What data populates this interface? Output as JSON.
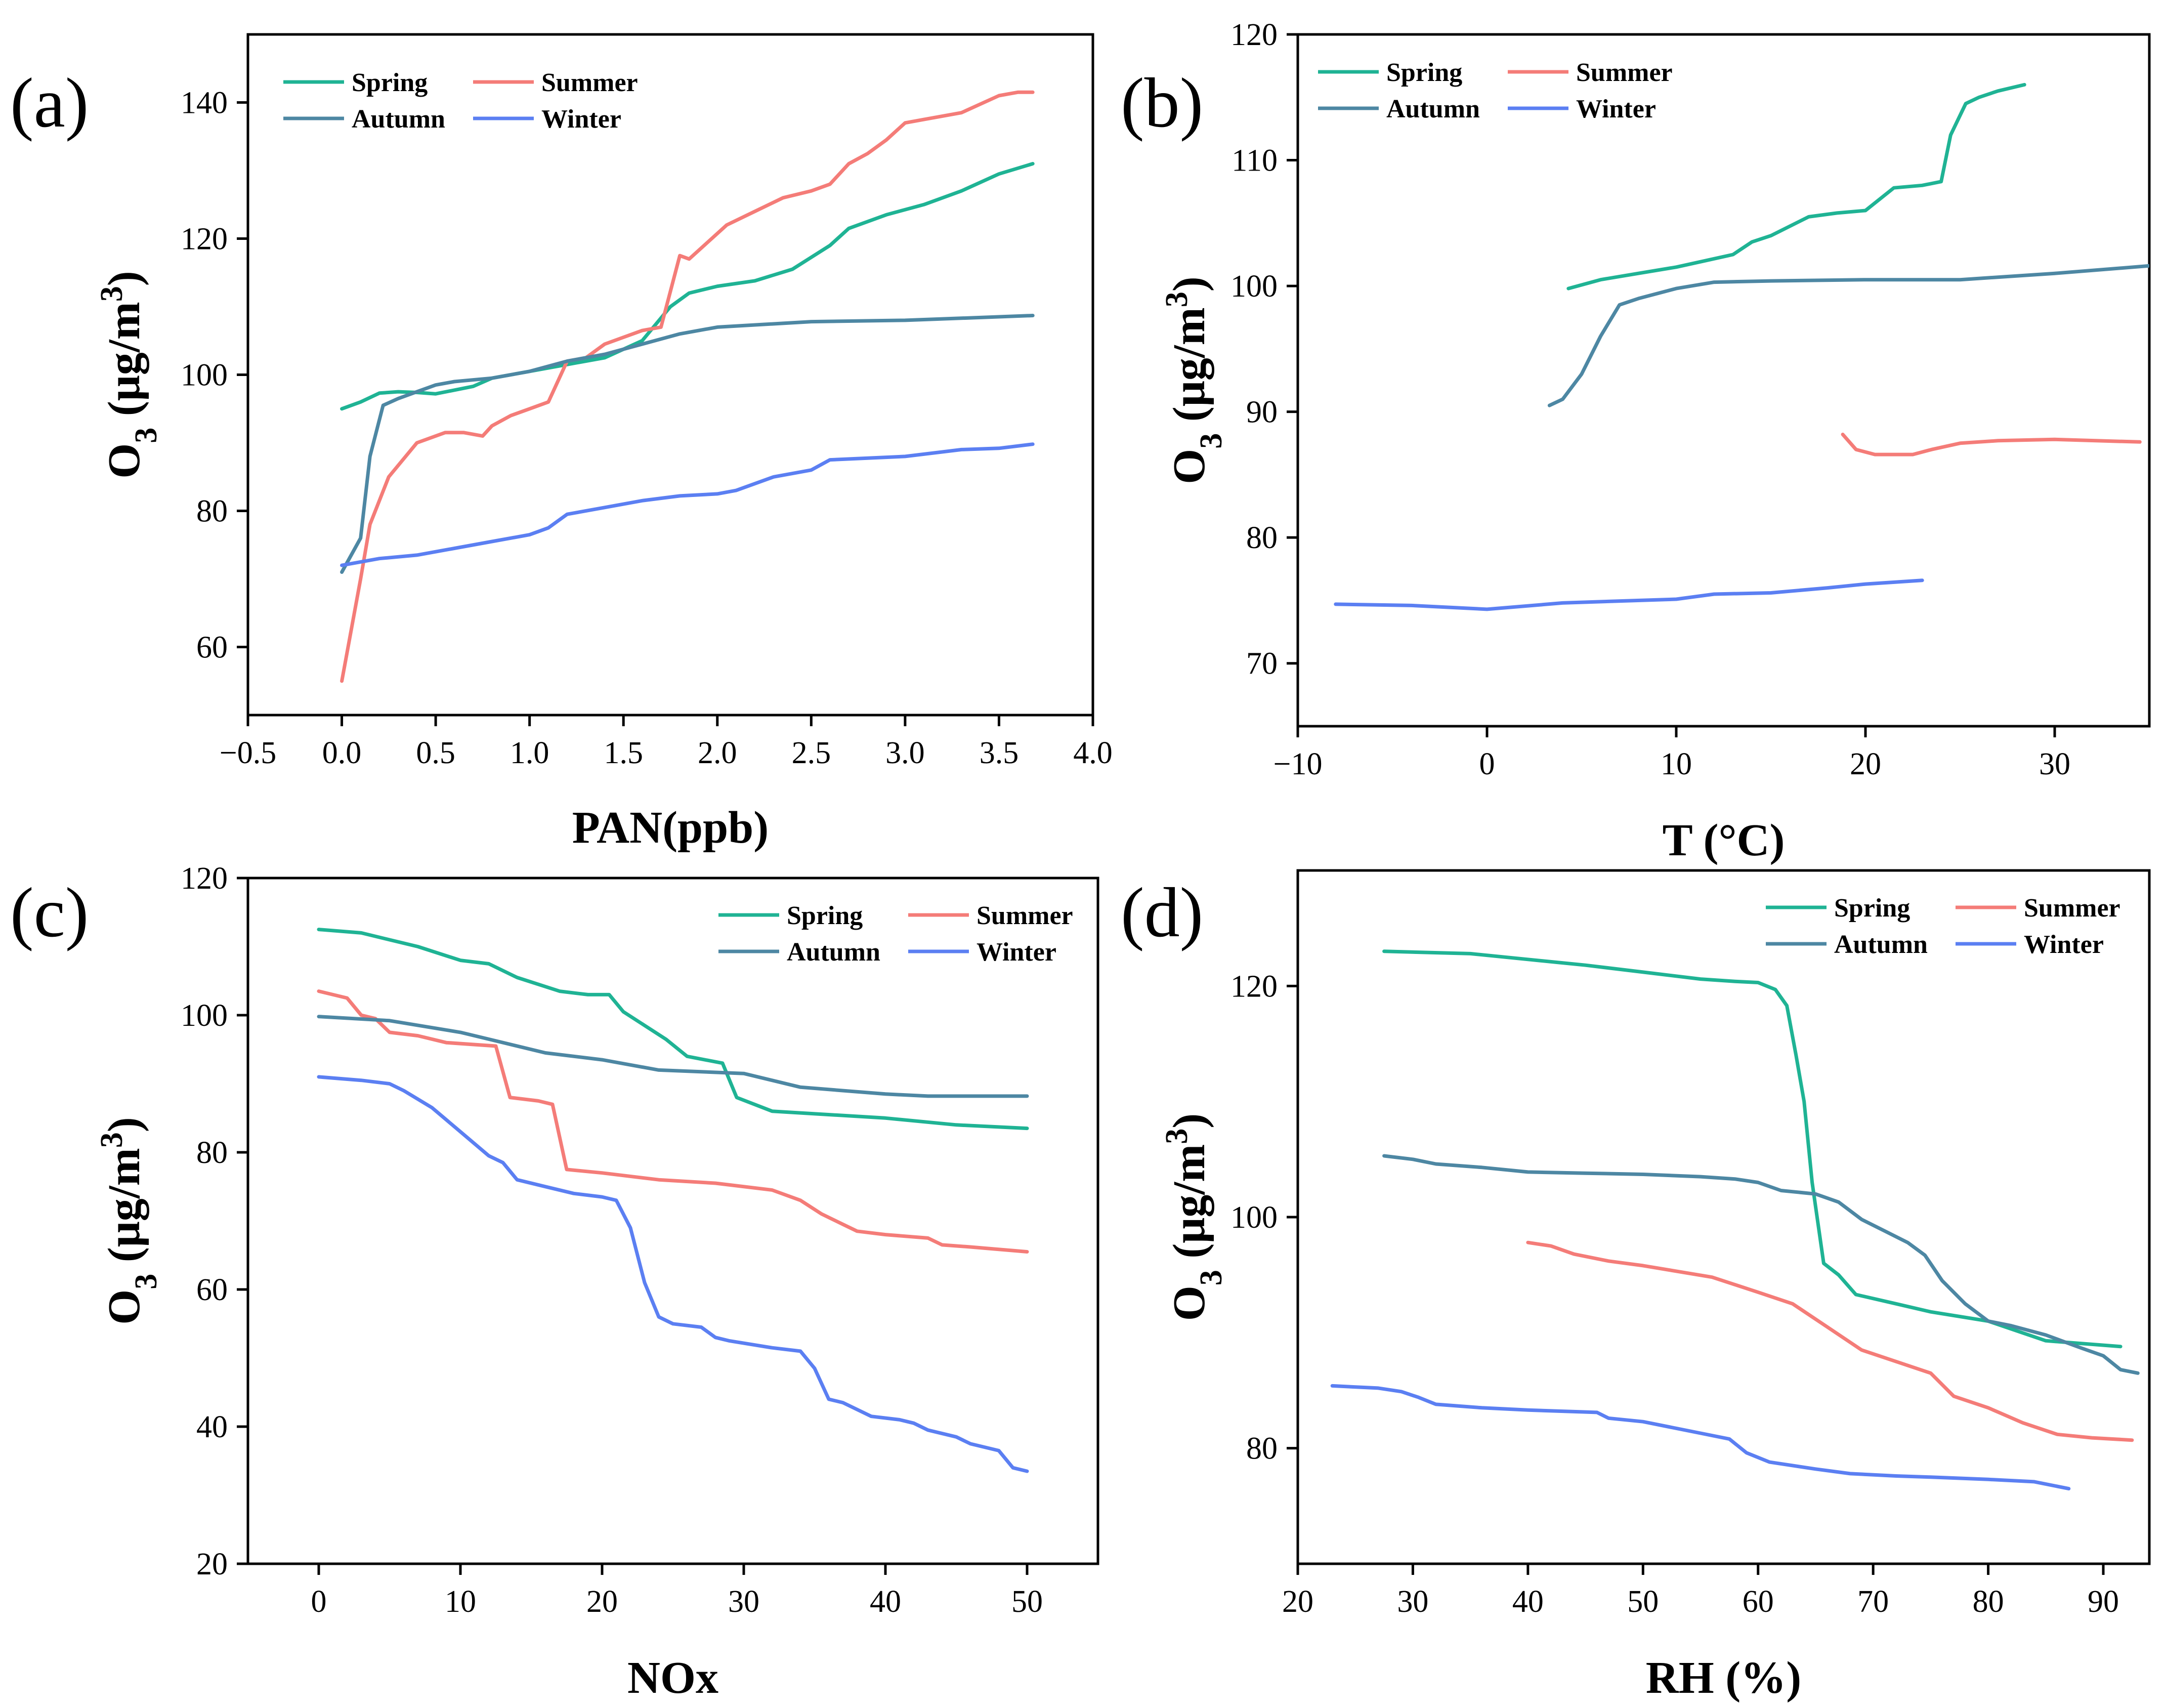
{
  "colors": {
    "Spring": "#1fb394",
    "Summer": "#f47c78",
    "Autumn": "#4d87a3",
    "Winter": "#5b7ff2"
  },
  "chart_data": [
    {
      "type": "line",
      "panel_label": "(a)",
      "xlabel": "PAN(ppb)",
      "ylabel_main": "O",
      "ylabel_sub": "3",
      "ylabel_unit": " (μg/m",
      "ylabel_sup": "3",
      "ylabel_close": ")",
      "xlim": [
        -0.5,
        4.0
      ],
      "ylim": [
        50,
        150
      ],
      "xticks": [
        -0.5,
        0.0,
        0.5,
        1.0,
        1.5,
        2.0,
        2.5,
        3.0,
        3.5,
        4.0
      ],
      "xtick_labels": [
        "−0.5",
        "0.0",
        "0.5",
        "1.0",
        "1.5",
        "2.0",
        "2.5",
        "3.0",
        "3.5",
        "4.0"
      ],
      "yticks": [
        60,
        80,
        100,
        120,
        140
      ],
      "ytick_labels": [
        "60",
        "80",
        "100",
        "120",
        "140"
      ],
      "legend": "top-left",
      "series": [
        {
          "name": "Spring",
          "x": [
            0.0,
            0.1,
            0.2,
            0.3,
            0.4,
            0.5,
            0.7,
            0.8,
            1.0,
            1.2,
            1.4,
            1.6,
            1.75,
            1.85,
            2.0,
            2.2,
            2.4,
            2.6,
            2.7,
            2.9,
            3.1,
            3.3,
            3.5,
            3.68
          ],
          "y": [
            95,
            96,
            97.3,
            97.5,
            97.4,
            97.2,
            98.3,
            99.5,
            100.5,
            101.5,
            102.5,
            105,
            110,
            112,
            113,
            113.8,
            115.5,
            119,
            121.5,
            123.5,
            125,
            127,
            129.5,
            131
          ]
        },
        {
          "name": "Summer",
          "x": [
            0.0,
            0.1,
            0.15,
            0.25,
            0.4,
            0.55,
            0.65,
            0.75,
            0.8,
            0.9,
            1.0,
            1.1,
            1.2,
            1.3,
            1.4,
            1.5,
            1.6,
            1.7,
            1.8,
            1.85,
            1.95,
            2.05,
            2.2,
            2.35,
            2.5,
            2.6,
            2.7,
            2.8,
            2.9,
            3.0,
            3.1,
            3.3,
            3.5,
            3.6,
            3.68
          ],
          "y": [
            55,
            70,
            78,
            85,
            90,
            91.5,
            91.5,
            91,
            92.5,
            94,
            95,
            96,
            102,
            102.5,
            104.5,
            105.5,
            106.5,
            107,
            117.5,
            117,
            119.5,
            122,
            124,
            126,
            127,
            128,
            131,
            132.5,
            134.5,
            137,
            137.5,
            138.5,
            141,
            141.5,
            141.5
          ]
        },
        {
          "name": "Autumn",
          "x": [
            0.0,
            0.1,
            0.15,
            0.22,
            0.3,
            0.4,
            0.5,
            0.6,
            0.8,
            1.0,
            1.2,
            1.4,
            1.6,
            1.8,
            2.0,
            2.5,
            3.0,
            3.68
          ],
          "y": [
            71,
            76,
            88,
            95.5,
            96.5,
            97.5,
            98.5,
            99,
            99.5,
            100.5,
            102,
            103,
            104.5,
            106,
            107,
            107.8,
            108,
            108.7
          ]
        },
        {
          "name": "Winter",
          "x": [
            0.0,
            0.2,
            0.4,
            0.6,
            0.8,
            1.0,
            1.1,
            1.2,
            1.4,
            1.6,
            1.8,
            2.0,
            2.1,
            2.3,
            2.5,
            2.6,
            3.0,
            3.3,
            3.5,
            3.68
          ],
          "y": [
            72,
            73,
            73.5,
            74.5,
            75.5,
            76.5,
            77.5,
            79.5,
            80.5,
            81.5,
            82.2,
            82.5,
            83,
            85,
            86,
            87.5,
            88,
            89,
            89.2,
            89.8
          ]
        }
      ]
    },
    {
      "type": "line",
      "panel_label": "(b)",
      "xlabel": "T (°C)",
      "ylabel_main": "O",
      "ylabel_sub": "3",
      "ylabel_unit": " (μg/m",
      "ylabel_sup": "3",
      "ylabel_close": ")",
      "xlim": [
        -10,
        35
      ],
      "ylim": [
        65,
        120
      ],
      "xticks": [
        -10,
        0,
        10,
        20,
        30
      ],
      "xtick_labels": [
        "−10",
        "0",
        "10",
        "20",
        "30"
      ],
      "yticks": [
        70,
        80,
        90,
        100,
        110,
        120
      ],
      "ytick_labels": [
        "70",
        "80",
        "90",
        "100",
        "110",
        "120"
      ],
      "legend": "top-left",
      "series": [
        {
          "name": "Spring",
          "x": [
            4.3,
            6,
            8,
            10,
            11.5,
            13,
            14,
            15,
            17,
            18.5,
            20,
            21.5,
            23,
            24,
            24.5,
            25.3,
            26,
            27,
            28.4
          ],
          "y": [
            99.8,
            100.5,
            101,
            101.5,
            102,
            102.5,
            103.5,
            104,
            105.5,
            105.8,
            106,
            107.8,
            108,
            108.3,
            112,
            114.5,
            115,
            115.5,
            116
          ]
        },
        {
          "name": "Summer",
          "x": [
            18.8,
            19.5,
            20.5,
            22.5,
            23.5,
            25,
            27,
            30,
            34.5
          ],
          "y": [
            88.2,
            87,
            86.6,
            86.6,
            87,
            87.5,
            87.7,
            87.8,
            87.6
          ]
        },
        {
          "name": "Autumn",
          "x": [
            3.3,
            4,
            5,
            6,
            7,
            8,
            10,
            12,
            15,
            20,
            25,
            30,
            35
          ],
          "y": [
            90.5,
            91,
            93,
            96,
            98.5,
            99,
            99.8,
            100.3,
            100.4,
            100.5,
            100.5,
            101,
            101.6
          ]
        },
        {
          "name": "Winter",
          "x": [
            -8,
            -4,
            0,
            4,
            10,
            12,
            15,
            18,
            20,
            23
          ],
          "y": [
            74.7,
            74.6,
            74.3,
            74.8,
            75.1,
            75.5,
            75.6,
            76,
            76.3,
            76.6
          ]
        }
      ]
    },
    {
      "type": "line",
      "panel_label": "(c)",
      "xlabel": "NOx",
      "ylabel_main": "O",
      "ylabel_sub": "3",
      "ylabel_unit": " (μg/m",
      "ylabel_sup": "3",
      "ylabel_close": ")",
      "xlim": [
        -5,
        55
      ],
      "ylim": [
        20,
        120
      ],
      "xticks": [
        0,
        10,
        20,
        30,
        40,
        50
      ],
      "xtick_labels": [
        "0",
        "10",
        "20",
        "30",
        "40",
        "50"
      ],
      "yticks": [
        20,
        40,
        60,
        80,
        100,
        120
      ],
      "ytick_labels": [
        "20",
        "40",
        "60",
        "80",
        "100",
        "120"
      ],
      "legend": "top-right",
      "series": [
        {
          "name": "Spring",
          "x": [
            0,
            3,
            5,
            7,
            10,
            12,
            14,
            17,
            19,
            20.5,
            21.5,
            23,
            24.5,
            26,
            28.5,
            29.5,
            32,
            40,
            45,
            50
          ],
          "y": [
            112.5,
            112,
            111,
            110,
            108,
            107.5,
            105.5,
            103.5,
            103,
            103,
            100.5,
            98.5,
            96.5,
            94,
            93,
            88,
            86,
            85,
            84,
            83.5
          ]
        },
        {
          "name": "Summer",
          "x": [
            0,
            2,
            3,
            4,
            5,
            7,
            9,
            12.5,
            13.5,
            15.5,
            16.5,
            17.5,
            20,
            24,
            28,
            32,
            34,
            35.5,
            37,
            38,
            40,
            43,
            44,
            46,
            50
          ],
          "y": [
            103.5,
            102.5,
            100,
            99.5,
            97.5,
            97,
            96,
            95.5,
            88,
            87.5,
            87,
            77.5,
            77,
            76,
            75.5,
            74.5,
            73,
            71,
            69.5,
            68.5,
            68,
            67.5,
            66.5,
            66.2,
            65.5
          ]
        },
        {
          "name": "Autumn",
          "x": [
            0,
            5,
            10,
            12,
            16,
            20,
            24,
            30,
            34,
            40,
            43,
            50
          ],
          "y": [
            99.8,
            99.2,
            97.5,
            96.5,
            94.5,
            93.5,
            92,
            91.5,
            89.5,
            88.5,
            88.2,
            88.2
          ]
        },
        {
          "name": "Winter",
          "x": [
            0,
            3,
            5,
            6,
            8,
            10,
            12,
            13,
            14,
            16,
            18,
            20,
            21,
            22,
            23,
            24,
            25,
            27,
            28,
            29,
            32,
            34,
            35,
            36,
            37,
            39,
            41,
            42,
            43,
            45,
            46,
            48,
            49,
            50
          ],
          "y": [
            91,
            90.5,
            90,
            89,
            86.5,
            83,
            79.5,
            78.5,
            76,
            75,
            74,
            73.5,
            73,
            69,
            61,
            56,
            55,
            54.5,
            53,
            52.5,
            51.5,
            51,
            48.5,
            44,
            43.5,
            41.5,
            41,
            40.5,
            39.5,
            38.5,
            37.5,
            36.5,
            34,
            33.5
          ]
        }
      ]
    },
    {
      "type": "line",
      "panel_label": "(d)",
      "xlabel": "RH (%)",
      "ylabel_main": "O",
      "ylabel_sub": "3",
      "ylabel_unit": " (μg/m",
      "ylabel_sup": "3",
      "ylabel_close": ")",
      "xlim": [
        20,
        94
      ],
      "ylim": [
        70,
        130
      ],
      "xticks": [
        20,
        30,
        40,
        50,
        60,
        70,
        80,
        90
      ],
      "xtick_labels": [
        "20",
        "30",
        "40",
        "50",
        "60",
        "70",
        "80",
        "90"
      ],
      "yticks": [
        80,
        100,
        120
      ],
      "ytick_labels": [
        "80",
        "100",
        "120"
      ],
      "legend": "top-right",
      "series": [
        {
          "name": "Spring",
          "x": [
            27.5,
            35,
            40,
            45,
            50,
            55,
            58,
            60,
            61.5,
            62.5,
            63.3,
            64,
            64.7,
            65.7,
            67,
            68.5,
            72,
            75,
            80,
            85,
            91.5
          ],
          "y": [
            123,
            122.8,
            122.3,
            121.8,
            121.2,
            120.6,
            120.4,
            120.3,
            119.7,
            118.3,
            114,
            110,
            103,
            96,
            95,
            93.3,
            92.5,
            91.8,
            91,
            89.3,
            88.8
          ]
        },
        {
          "name": "Summer",
          "x": [
            40,
            42,
            44,
            47,
            50,
            53,
            56,
            60,
            63,
            66,
            69,
            72,
            75,
            77,
            80,
            83,
            86,
            89,
            92.5
          ],
          "y": [
            97.8,
            97.5,
            96.8,
            96.2,
            95.8,
            95.3,
            94.8,
            93.5,
            92.5,
            90.5,
            88.5,
            87.5,
            86.5,
            84.5,
            83.5,
            82.2,
            81.2,
            80.9,
            80.7
          ]
        },
        {
          "name": "Autumn",
          "x": [
            27.5,
            30,
            32,
            36,
            40,
            45,
            50,
            55,
            58,
            60,
            62,
            65,
            67,
            69,
            71,
            73,
            74.5,
            76,
            78,
            80,
            82,
            85,
            88,
            90,
            91.5,
            93
          ],
          "y": [
            105.3,
            105,
            104.6,
            104.3,
            103.9,
            103.8,
            103.7,
            103.5,
            103.3,
            103,
            102.3,
            102,
            101.3,
            99.8,
            98.8,
            97.8,
            96.7,
            94.5,
            92.5,
            91,
            90.6,
            89.8,
            88.7,
            88,
            86.8,
            86.5
          ]
        },
        {
          "name": "Winter",
          "x": [
            23,
            27,
            29,
            30.5,
            32,
            36,
            40,
            46,
            47,
            50,
            55,
            57.5,
            59,
            61,
            65,
            68,
            72,
            75,
            80,
            84,
            87
          ],
          "y": [
            85.4,
            85.2,
            84.9,
            84.4,
            83.8,
            83.5,
            83.3,
            83.1,
            82.6,
            82.3,
            81.3,
            80.8,
            79.6,
            78.8,
            78.2,
            77.8,
            77.6,
            77.5,
            77.3,
            77.1,
            76.5
          ]
        }
      ]
    }
  ]
}
